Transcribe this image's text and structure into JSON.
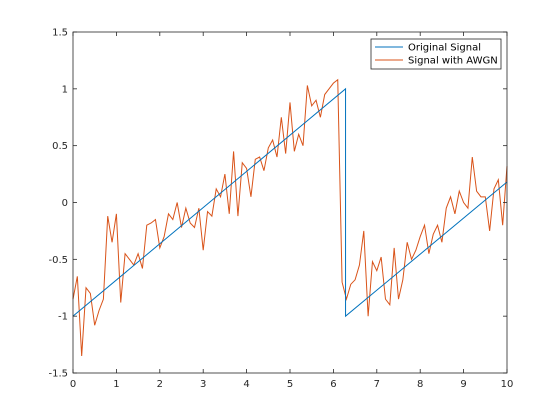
{
  "chart_data": {
    "type": "line",
    "xlim": [
      0,
      10
    ],
    "ylim": [
      -1.5,
      1.5
    ],
    "xticks": [
      0,
      1,
      2,
      3,
      4,
      5,
      6,
      7,
      8,
      9,
      10
    ],
    "yticks": [
      -1.5,
      -1,
      -0.5,
      0,
      0.5,
      1,
      1.5
    ],
    "xtick_labels": [
      "0",
      "1",
      "2",
      "3",
      "4",
      "5",
      "6",
      "7",
      "8",
      "9",
      "10"
    ],
    "ytick_labels": [
      "-1.5",
      "-1",
      "-0.5",
      "0",
      "0.5",
      "1",
      "1.5"
    ],
    "grid": false,
    "legend": {
      "placement": "top-right",
      "entries": [
        "Original Signal",
        "Signal with AWGN"
      ]
    },
    "series": [
      {
        "name": "Original Signal",
        "color": "#0072BD",
        "x": [
          0,
          6.28,
          6.28,
          10
        ],
        "y": [
          -1,
          1,
          -1,
          0.18
        ]
      },
      {
        "name": "Signal with AWGN",
        "color": "#D95319",
        "x": [
          0,
          0.1,
          0.2,
          0.3,
          0.4,
          0.5,
          0.6,
          0.7,
          0.8,
          0.9,
          1.0,
          1.1,
          1.2,
          1.3,
          1.4,
          1.5,
          1.6,
          1.7,
          1.8,
          1.9,
          2.0,
          2.1,
          2.2,
          2.3,
          2.4,
          2.5,
          2.6,
          2.7,
          2.8,
          2.9,
          3.0,
          3.1,
          3.2,
          3.3,
          3.4,
          3.5,
          3.6,
          3.7,
          3.8,
          3.9,
          4.0,
          4.1,
          4.2,
          4.3,
          4.4,
          4.5,
          4.6,
          4.7,
          4.8,
          4.9,
          5.0,
          5.1,
          5.2,
          5.3,
          5.4,
          5.5,
          5.6,
          5.7,
          5.8,
          5.9,
          6.0,
          6.1,
          6.2,
          6.3,
          6.4,
          6.5,
          6.6,
          6.7,
          6.8,
          6.9,
          7.0,
          7.1,
          7.2,
          7.3,
          7.4,
          7.5,
          7.6,
          7.7,
          7.8,
          7.9,
          8.0,
          8.1,
          8.2,
          8.3,
          8.4,
          8.5,
          8.6,
          8.7,
          8.8,
          8.9,
          9.0,
          9.1,
          9.2,
          9.3,
          9.4,
          9.5,
          9.6,
          9.7,
          9.8,
          9.9,
          10.0
        ],
        "y": [
          -0.85,
          -0.65,
          -1.35,
          -0.75,
          -0.8,
          -1.08,
          -0.95,
          -0.85,
          -0.12,
          -0.35,
          -0.1,
          -0.88,
          -0.45,
          -0.5,
          -0.55,
          -0.45,
          -0.58,
          -0.2,
          -0.18,
          -0.15,
          -0.4,
          -0.3,
          -0.1,
          -0.15,
          0.0,
          -0.22,
          -0.05,
          -0.18,
          -0.22,
          -0.05,
          -0.42,
          -0.08,
          -0.12,
          0.12,
          0.05,
          0.25,
          -0.1,
          0.45,
          -0.12,
          0.35,
          0.3,
          0.05,
          0.38,
          0.4,
          0.28,
          0.48,
          0.55,
          0.4,
          0.75,
          0.43,
          0.88,
          0.45,
          0.6,
          0.5,
          1.03,
          0.85,
          0.9,
          0.75,
          0.95,
          1.0,
          1.05,
          1.08,
          -0.7,
          -0.85,
          -0.72,
          -0.68,
          -0.55,
          -0.25,
          -1.0,
          -0.52,
          -0.6,
          -0.48,
          -0.85,
          -0.9,
          -0.4,
          -0.85,
          -0.68,
          -0.35,
          -0.5,
          -0.42,
          -0.3,
          -0.2,
          -0.45,
          -0.28,
          -0.2,
          -0.35,
          -0.05,
          0.05,
          -0.1,
          0.1,
          0.0,
          -0.05,
          0.4,
          0.1,
          0.05,
          0.05,
          -0.25,
          0.12,
          0.2,
          -0.2,
          0.32
        ]
      }
    ]
  }
}
